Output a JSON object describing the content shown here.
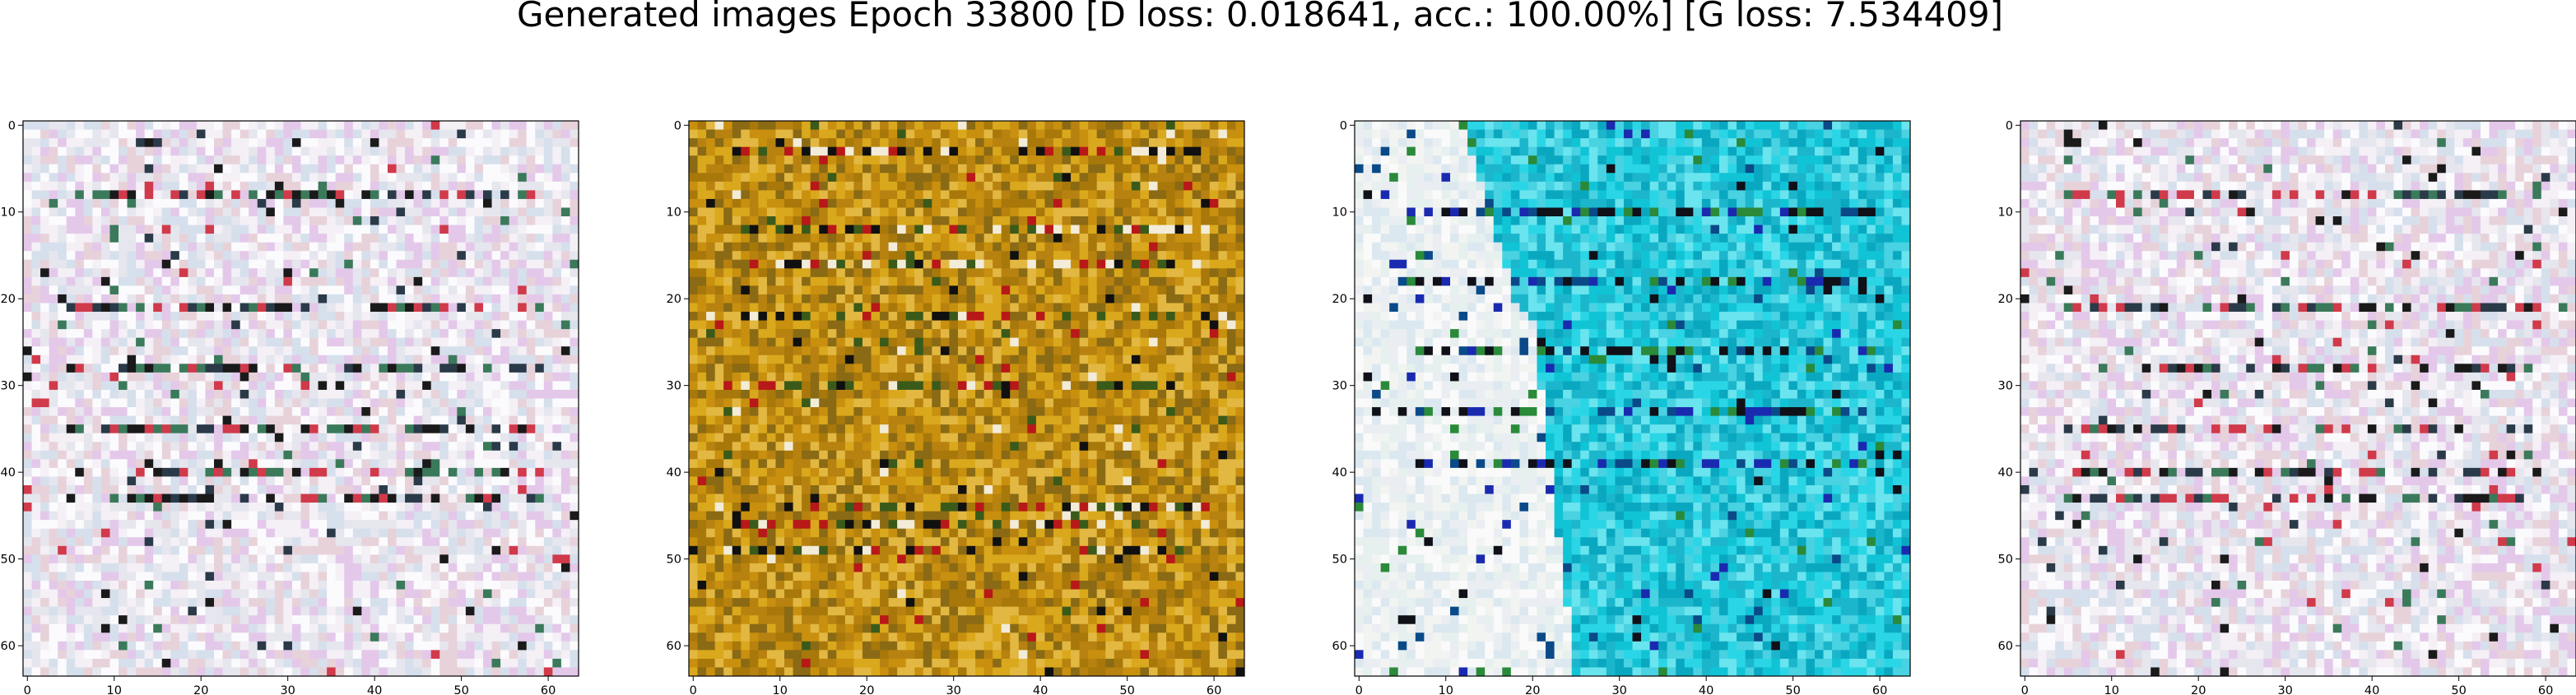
{
  "title": "Generated images Epoch 33800 [D loss: 0.018641, acc.: 100.00%] [G loss: 7.534409]",
  "chart_data": [
    {
      "type": "image",
      "image_name": "generated-sample-1",
      "xlim": [
        0,
        63
      ],
      "ylim": [
        63,
        0
      ],
      "xticks": [
        0,
        10,
        20,
        30,
        40,
        50,
        60
      ],
      "yticks": [
        0,
        10,
        20,
        30,
        40,
        50,
        60
      ],
      "palette": [
        "#f4f0f6",
        "#e6e6ee",
        "#fbfbfd",
        "#e4c8ea",
        "#d6e0ec",
        "#e8d2da"
      ],
      "stripe_colors": [
        "#1a1a1a",
        "#2a3a48",
        "#d03a4a",
        "#3a7a5a"
      ],
      "stripe_rows": [
        8,
        21,
        28,
        35,
        40,
        43
      ]
    },
    {
      "type": "image",
      "image_name": "generated-sample-2",
      "xlim": [
        0,
        63
      ],
      "ylim": [
        63,
        0
      ],
      "xticks": [
        0,
        10,
        20,
        30,
        40,
        50,
        60
      ],
      "yticks": [
        0,
        10,
        20,
        30,
        40,
        50,
        60
      ],
      "palette": [
        "#c8900e",
        "#daa81c",
        "#b88210",
        "#e2b842",
        "#a8780a",
        "#8a6a14"
      ],
      "stripe_colors": [
        "#101010",
        "#b81818",
        "#f2ecd8",
        "#3a5a1a"
      ],
      "stripe_rows": [
        3,
        12,
        16,
        22,
        30,
        44,
        46,
        49
      ]
    },
    {
      "type": "image",
      "image_name": "generated-sample-3",
      "xlim": [
        0,
        63
      ],
      "ylim": [
        63,
        0
      ],
      "xticks": [
        0,
        10,
        20,
        30,
        40,
        50,
        60
      ],
      "yticks": [
        0,
        10,
        20,
        30,
        40,
        50,
        60
      ],
      "palette": [
        "#10c4d6",
        "#2ad6e6",
        "#0aa8c0",
        "#6ae4ee",
        "#1cb6cc",
        "#48d2e2"
      ],
      "left_palette": [
        "#f2f4f2",
        "#e6f0ee",
        "#fafafa",
        "#dce8f0",
        "#eaeef2"
      ],
      "stripe_colors": [
        "#101018",
        "#1a2ab0",
        "#0a4a88",
        "#2a8a3a"
      ],
      "stripe_rows": [
        10,
        18,
        26,
        33,
        39
      ]
    },
    {
      "type": "image",
      "image_name": "generated-sample-4",
      "xlim": [
        0,
        63
      ],
      "ylim": [
        63,
        0
      ],
      "xticks": [
        0,
        10,
        20,
        30,
        40,
        50,
        60
      ],
      "yticks": [
        0,
        10,
        20,
        30,
        40,
        50,
        60
      ],
      "palette": [
        "#f4f0f6",
        "#e6e6ee",
        "#fbfbfd",
        "#e4c8ea",
        "#d6e0ec",
        "#e8d2da"
      ],
      "stripe_colors": [
        "#1a1a1a",
        "#2a3a48",
        "#d03a4a",
        "#3a7a5a"
      ],
      "stripe_rows": [
        8,
        21,
        28,
        35,
        40,
        43
      ]
    }
  ]
}
